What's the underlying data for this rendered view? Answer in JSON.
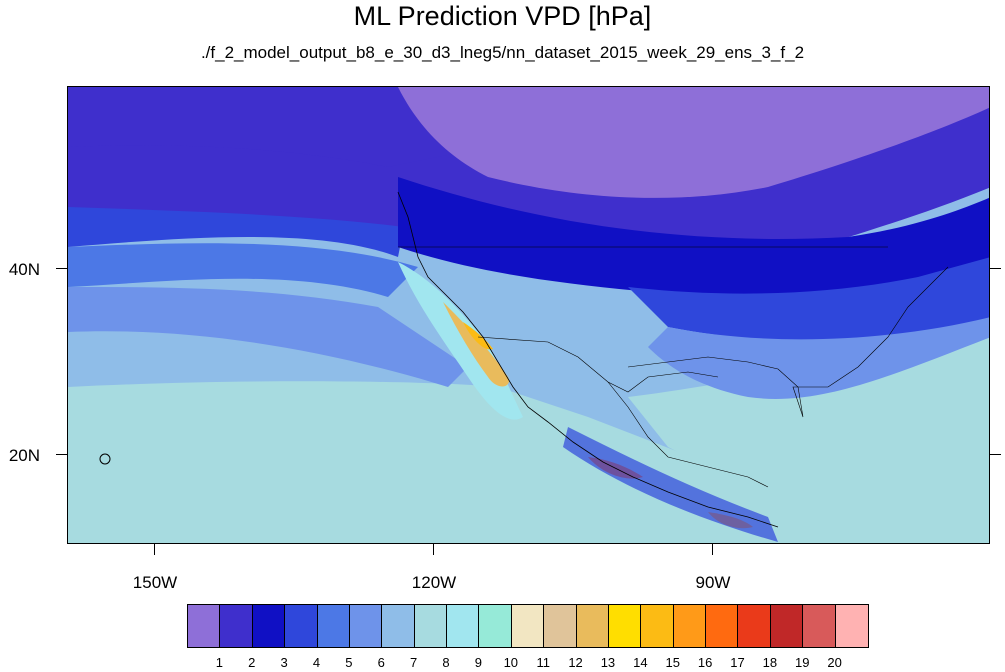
{
  "title": "ML Prediction VPD [hPa]",
  "subtitle": "./f_2_model_output_b8_e_30_d3_lneg5/nn_dataset_2015_week_29_ens_3_f_2",
  "lat_labels": [
    "40N",
    "20N"
  ],
  "lon_labels": [
    "150W",
    "120W",
    "90W"
  ],
  "legend": {
    "colors": [
      "#8e6fd8",
      "#3f2fcc",
      "#1010c4",
      "#2f47db",
      "#4c78e6",
      "#6e93ea",
      "#8fbde8",
      "#a7dbe0",
      "#a1e6ef",
      "#96ead8",
      "#f2e6c2",
      "#e0c49a",
      "#e9bb5c",
      "#ffde00",
      "#fcbb14",
      "#ff9a18",
      "#ff6a10",
      "#ea3a1a",
      "#c02828",
      "#d85a5a",
      "#ffb2b2"
    ],
    "labels": [
      "1",
      "2",
      "3",
      "4",
      "5",
      "6",
      "7",
      "8",
      "9",
      "10",
      "11",
      "12",
      "13",
      "14",
      "15",
      "16",
      "17",
      "18",
      "19",
      "20"
    ]
  }
}
